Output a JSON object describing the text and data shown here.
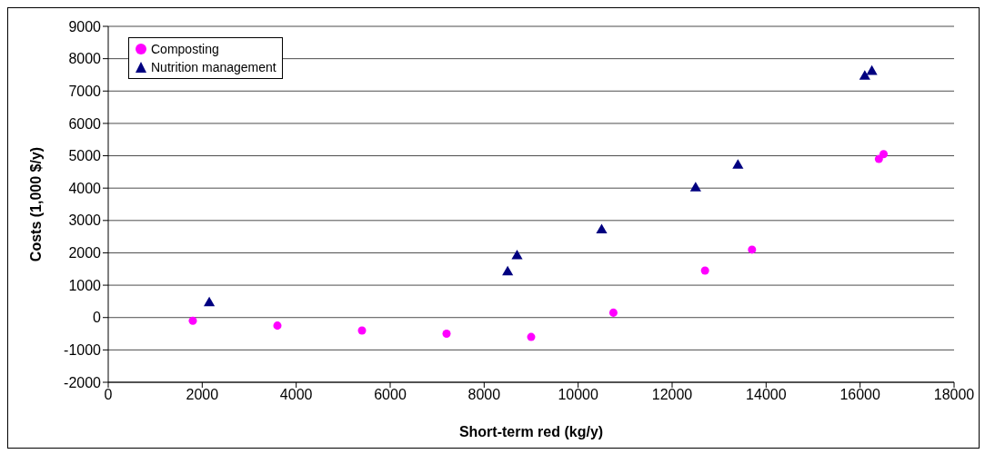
{
  "chart_data": {
    "type": "scatter",
    "xlabel": "Short-term red (kg/y)",
    "ylabel": "Costs (1,000 $/y)",
    "xlim": [
      0,
      18000
    ],
    "xticks": [
      0,
      2000,
      4000,
      6000,
      8000,
      10000,
      12000,
      14000,
      16000,
      18000
    ],
    "ylim": [
      -2000,
      9000
    ],
    "yticks": [
      -2000,
      -1000,
      0,
      1000,
      2000,
      3000,
      4000,
      5000,
      6000,
      7000,
      8000,
      9000
    ],
    "grid": "y",
    "legend": "top left",
    "series": [
      {
        "name": "Composting",
        "color": "#ff00ff",
        "marker": "circle",
        "x": [
          1800,
          3600,
          5400,
          7200,
          9000,
          10750,
          12700,
          13700,
          16400,
          16500
        ],
        "values": [
          -100,
          -250,
          -400,
          -500,
          -600,
          150,
          1450,
          2100,
          4900,
          5050
        ]
      },
      {
        "name": "Nutrition management",
        "color": "#000080",
        "marker": "triangle",
        "x": [
          2150,
          8500,
          8700,
          10500,
          12500,
          13400,
          16100,
          16250
        ],
        "values": [
          450,
          1400,
          1900,
          2700,
          4000,
          4700,
          7450,
          7600
        ]
      }
    ]
  }
}
